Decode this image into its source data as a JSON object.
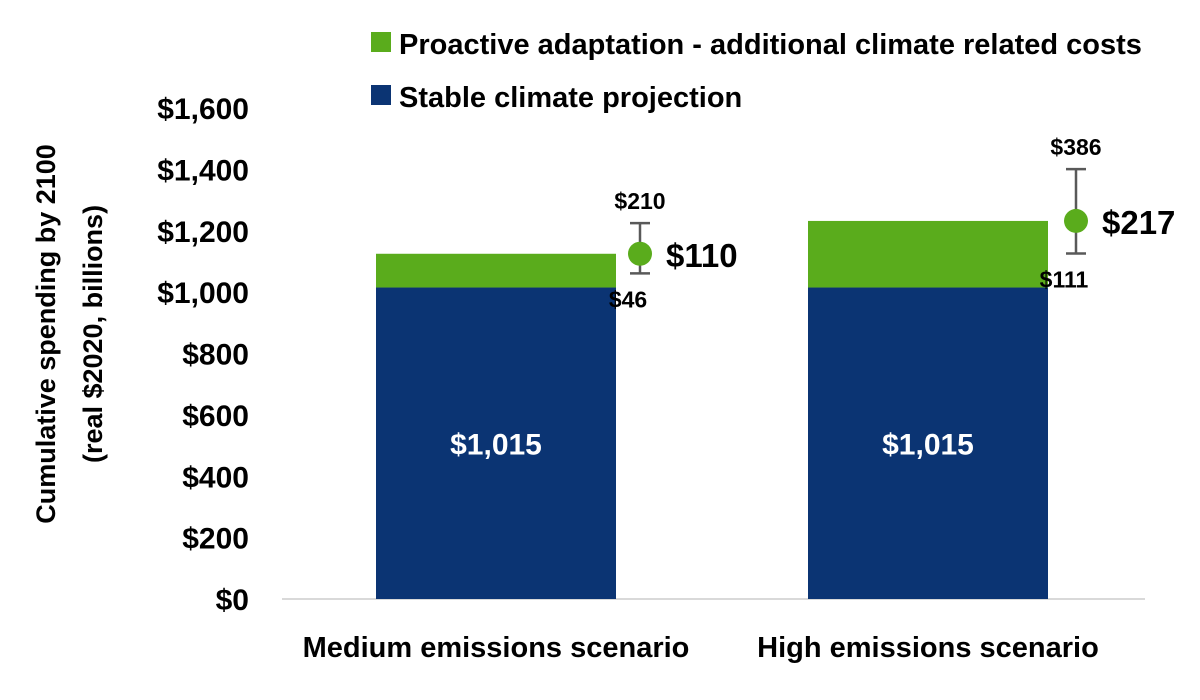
{
  "chart_data": {
    "type": "bar",
    "stacked": true,
    "categories": [
      "Medium emissions scenario",
      "High emissions scenario"
    ],
    "ylabel_line1": "Cumulative spending by 2100",
    "ylabel_line2": "(real $2020, billions)",
    "ylim": [
      0,
      1600
    ],
    "yticks": [
      0,
      200,
      400,
      600,
      800,
      1000,
      1200,
      1400,
      1600
    ],
    "ytick_labels": [
      "$0",
      "$200",
      "$400",
      "$600",
      "$800",
      "$1,000",
      "$1,200",
      "$1,400",
      "$1,600"
    ],
    "grid": false,
    "legend_position": "top-right",
    "series": [
      {
        "name": "Stable climate projection",
        "color": "#0b3473",
        "values": [
          1015,
          1015
        ],
        "data_labels": [
          "$1,015",
          "$1,015"
        ]
      },
      {
        "name": "Proactive adaptation - additional climate related costs",
        "color": "#5aac1c",
        "values": [
          110,
          217
        ]
      }
    ],
    "uncertainty": [
      {
        "central": 110,
        "low": 46,
        "high": 210,
        "central_label": "$110",
        "low_label": "$46",
        "high_label": "$210"
      },
      {
        "central": 217,
        "low": 111,
        "high": 386,
        "central_label": "$217",
        "low_label": "$111",
        "high_label": "$386"
      }
    ],
    "colors": {
      "marker": "#5aac1c",
      "errorbar": "#595959",
      "axis": "#d9d9d9",
      "text": "#000000",
      "bar_label": "#ffffff"
    }
  }
}
